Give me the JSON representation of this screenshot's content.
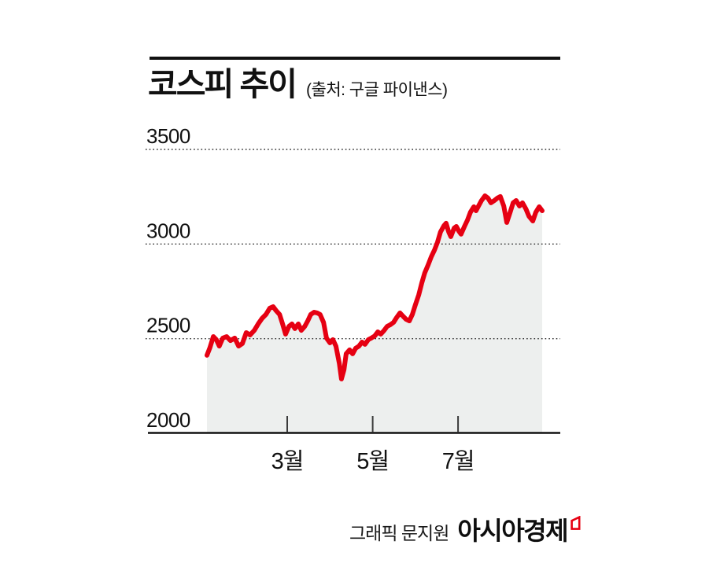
{
  "header": {
    "title": "코스피 추이",
    "subtitle": "(출처: 구글 파이낸스)"
  },
  "footer": {
    "credit": "그래픽 문지원",
    "brand": "아시아경제",
    "logo_icon": "asiae-red-flag-mark"
  },
  "colors": {
    "line": "#e60012",
    "area_fill": "#edefee",
    "grid": "#2a2a2a",
    "axis": "#111111",
    "tick": "#3a3a3a",
    "text": "#111111",
    "accent": "#e60012"
  },
  "chart_data": {
    "type": "line",
    "title": "코스피 추이",
    "source": "구글 파이낸스",
    "series_name": "KOSPI",
    "x_unit": "month (1=Jan … 9=Sep)",
    "xlim": [
      1.12,
      8.97
    ],
    "ylim": [
      2000,
      3500
    ],
    "grid": "dotted horizontal",
    "legend": "none",
    "xticks": [
      {
        "value": 3,
        "label": "3월"
      },
      {
        "value": 5,
        "label": "5월"
      },
      {
        "value": 7,
        "label": "7월"
      }
    ],
    "yticks": [
      {
        "value": 2000,
        "label": "2000"
      },
      {
        "value": 2500,
        "label": "2500"
      },
      {
        "value": 3000,
        "label": "3000"
      },
      {
        "value": 3500,
        "label": "3500"
      }
    ],
    "ygrid_dotted": [
      2500,
      3000,
      3500
    ],
    "x": [
      1.12,
      1.19,
      1.27,
      1.34,
      1.41,
      1.49,
      1.58,
      1.67,
      1.77,
      1.86,
      1.95,
      2.04,
      2.13,
      2.23,
      2.32,
      2.41,
      2.5,
      2.59,
      2.67,
      2.74,
      2.82,
      2.89,
      2.96,
      3.04,
      3.11,
      3.18,
      3.26,
      3.33,
      3.41,
      3.48,
      3.55,
      3.63,
      3.7,
      3.77,
      3.85,
      3.92,
      4.0,
      4.07,
      4.14,
      4.22,
      4.27,
      4.33,
      4.38,
      4.46,
      4.53,
      4.6,
      4.68,
      4.75,
      4.82,
      4.9,
      4.97,
      5.05,
      5.12,
      5.19,
      5.27,
      5.34,
      5.41,
      5.49,
      5.56,
      5.64,
      5.71,
      5.78,
      5.86,
      5.93,
      6.0,
      6.08,
      6.15,
      6.22,
      6.3,
      6.37,
      6.45,
      6.52,
      6.59,
      6.67,
      6.72,
      6.78,
      6.83,
      6.91,
      6.96,
      7.02,
      7.07,
      7.15,
      7.22,
      7.29,
      7.37,
      7.42,
      7.48,
      7.55,
      7.63,
      7.7,
      7.77,
      7.85,
      7.92,
      7.99,
      8.07,
      8.14,
      8.22,
      8.29,
      8.36,
      8.44,
      8.51,
      8.59,
      8.66,
      8.75,
      8.82,
      8.9,
      8.97
    ],
    "values": [
      2412,
      2453,
      2511,
      2495,
      2461,
      2503,
      2511,
      2490,
      2503,
      2461,
      2474,
      2532,
      2520,
      2544,
      2578,
      2607,
      2628,
      2661,
      2669,
      2648,
      2628,
      2578,
      2524,
      2565,
      2578,
      2553,
      2578,
      2544,
      2565,
      2594,
      2628,
      2640,
      2636,
      2628,
      2586,
      2503,
      2478,
      2495,
      2461,
      2370,
      2287,
      2337,
      2420,
      2441,
      2420,
      2449,
      2461,
      2482,
      2470,
      2495,
      2503,
      2515,
      2536,
      2524,
      2544,
      2565,
      2573,
      2586,
      2611,
      2636,
      2619,
      2603,
      2594,
      2628,
      2678,
      2732,
      2794,
      2848,
      2890,
      2931,
      2969,
      3010,
      3064,
      3097,
      3110,
      3064,
      3039,
      3085,
      3093,
      3068,
      3052,
      3093,
      3126,
      3168,
      3197,
      3176,
      3201,
      3230,
      3255,
      3243,
      3218,
      3230,
      3243,
      3251,
      3201,
      3114,
      3168,
      3218,
      3230,
      3201,
      3218,
      3185,
      3147,
      3122,
      3168,
      3197,
      3176
    ]
  }
}
